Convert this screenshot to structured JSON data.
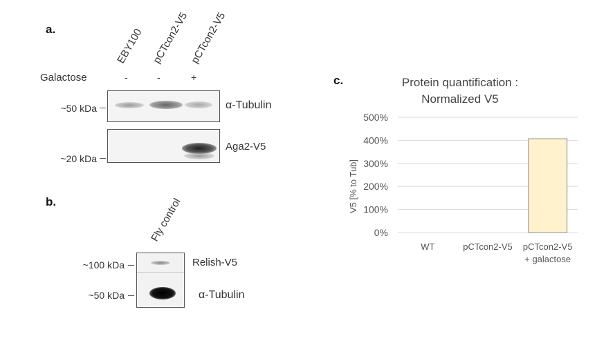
{
  "panel_a": {
    "letter": "a.",
    "lanes": [
      "EBY100",
      "pCTcon2-V5",
      "pCTcon2-V5"
    ],
    "galactose_label": "Galactose",
    "galactose_signs": [
      "-",
      "-",
      "+"
    ],
    "markers": [
      "~50 kDa",
      "~20 kDa"
    ],
    "proteins": [
      "α-Tubulin",
      "Aga2-V5"
    ]
  },
  "panel_b": {
    "letter": "b.",
    "lane": "Fly control",
    "markers": [
      "~100 kDa",
      "~50 kDa"
    ],
    "proteins": [
      "Relish-V5",
      "α-Tubulin"
    ]
  },
  "panel_c": {
    "letter": "c.",
    "chart_data": {
      "type": "bar",
      "title": "Protein quantification :\nNormalized V5",
      "title_lines": [
        "Protein quantification :",
        "Normalized V5"
      ],
      "ylabel": "V5 [% to Tub]",
      "xlabel": "",
      "categories": [
        "WT",
        "pCTcon2-V5",
        "pCTcon2-V5\n+ galactose"
      ],
      "category_lines": [
        [
          "WT"
        ],
        [
          "pCTcon2-V5"
        ],
        [
          "pCTcon2-V5",
          "+ galactose"
        ]
      ],
      "values": [
        0,
        0,
        4.07
      ],
      "ylim": [
        0,
        5
      ],
      "yticks": [
        0,
        1,
        2,
        3,
        4,
        5
      ],
      "ytick_labels": [
        "0%",
        "100%",
        "200%",
        "300%",
        "400%",
        "500%"
      ],
      "grid": true,
      "bar_color": "#fff2cc",
      "bar_edge": "#8c8c8c"
    }
  }
}
